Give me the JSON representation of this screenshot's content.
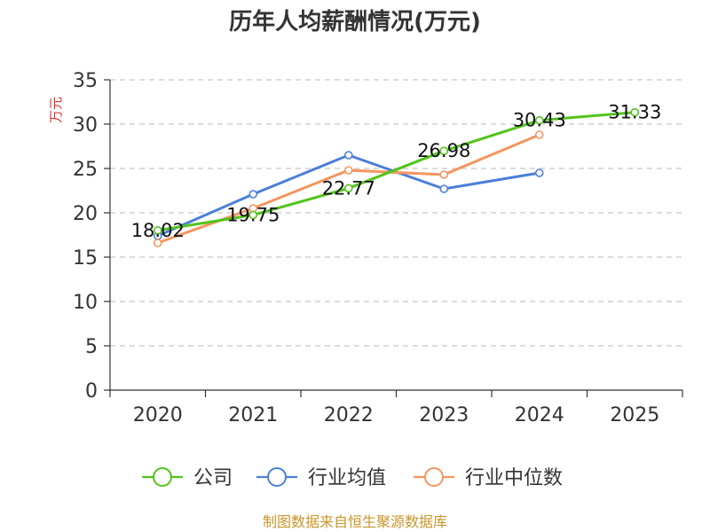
{
  "chart_data": {
    "type": "line",
    "title": "历年人均薪酬情况(万元)",
    "ylabel": "万元",
    "xlabel": "",
    "categories": [
      "2020",
      "2021",
      "2022",
      "2023",
      "2024",
      "2025"
    ],
    "ylim": [
      0,
      35
    ],
    "yticks": [
      0,
      5,
      10,
      15,
      20,
      25,
      30,
      35
    ],
    "grid": true,
    "legend_position": "bottom",
    "series": [
      {
        "name": "公司",
        "color": "#52c41a",
        "values": [
          18.02,
          19.75,
          22.77,
          26.98,
          30.43,
          31.33
        ],
        "show_labels": true
      },
      {
        "name": "行业均值",
        "color": "#4a7fd8",
        "values": [
          17.4,
          22.1,
          26.5,
          22.7,
          24.5,
          null
        ],
        "show_labels": false
      },
      {
        "name": "行业中位数",
        "color": "#f4955e",
        "values": [
          16.6,
          20.5,
          24.8,
          24.3,
          28.8,
          null
        ],
        "show_labels": false
      }
    ],
    "data_labels": [
      "18.02",
      "19.75",
      "22.77",
      "26.98",
      "30.43",
      "31.33"
    ],
    "source": "制图数据来自恒生聚源数据库"
  }
}
